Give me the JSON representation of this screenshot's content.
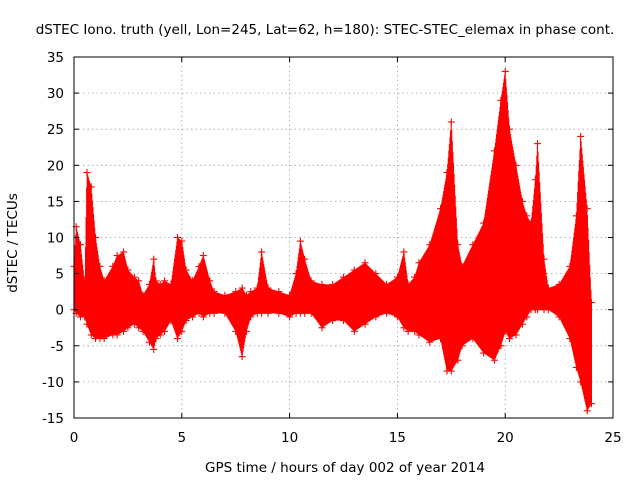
{
  "chart_data": {
    "type": "scatter",
    "title": "dSTEC Iono. truth (yell, Lon=245, Lat=62, h=180): STEC-STEC_elemax in phase cont.",
    "xlabel": "GPS time / hours of day 002 of year 2014",
    "ylabel": "dSTEC  / TECUs",
    "xlim": [
      0,
      25
    ],
    "ylim": [
      -15,
      35
    ],
    "xticks": [
      "0",
      "5",
      "10",
      "15",
      "20",
      "25"
    ],
    "xtick_values": [
      0,
      5,
      10,
      15,
      20,
      25
    ],
    "yticks": [
      "-15",
      "-10",
      "-5",
      "0",
      "5",
      "10",
      "15",
      "20",
      "25",
      "30",
      "35"
    ],
    "ytick_values": [
      -15,
      -10,
      -5,
      0,
      5,
      10,
      15,
      20,
      25,
      30,
      35
    ],
    "grid": true,
    "legend": "none",
    "marker": "+",
    "series": [
      {
        "color": "#ff0000",
        "envelope_x": [
          0.0,
          0.1,
          0.3,
          0.5,
          0.6,
          0.8,
          1.0,
          1.2,
          1.4,
          1.8,
          2.0,
          2.3,
          2.5,
          2.8,
          3.0,
          3.2,
          3.5,
          3.7,
          3.8,
          4.0,
          4.2,
          4.5,
          4.8,
          5.0,
          5.2,
          5.5,
          5.8,
          6.0,
          6.3,
          6.5,
          7.0,
          7.5,
          7.8,
          8.0,
          8.2,
          8.5,
          8.7,
          9.0,
          9.5,
          10.0,
          10.3,
          10.5,
          10.7,
          11.0,
          11.5,
          12.0,
          12.5,
          13.0,
          13.5,
          14.0,
          14.5,
          15.0,
          15.3,
          15.5,
          15.8,
          16.0,
          16.5,
          17.0,
          17.3,
          17.5,
          17.8,
          18.0,
          18.5,
          19.0,
          19.5,
          19.8,
          20.0,
          20.2,
          20.5,
          20.8,
          21.0,
          21.2,
          21.4,
          21.5,
          21.8,
          22.0,
          22.5,
          23.0,
          23.3,
          23.5,
          23.8,
          24.0
        ],
        "envelope_hi": [
          6.0,
          11.5,
          9.0,
          3.5,
          19.0,
          17.0,
          10.0,
          6.0,
          4.0,
          6.0,
          7.5,
          8.0,
          5.5,
          4.5,
          4.0,
          2.0,
          3.5,
          7.0,
          4.0,
          3.5,
          4.0,
          3.5,
          10.0,
          9.5,
          5.5,
          4.0,
          6.0,
          7.5,
          4.0,
          2.5,
          2.0,
          2.5,
          3.0,
          2.0,
          2.5,
          3.0,
          8.0,
          3.0,
          2.5,
          2.0,
          5.0,
          9.5,
          7.0,
          4.0,
          3.5,
          3.5,
          4.5,
          5.5,
          6.5,
          5.0,
          3.5,
          4.5,
          8.0,
          3.5,
          4.5,
          6.5,
          9.0,
          14.0,
          19.0,
          26.0,
          9.0,
          6.0,
          9.0,
          12.0,
          22.0,
          29.0,
          33.0,
          25.0,
          20.0,
          15.0,
          13.0,
          12.0,
          18.0,
          23.0,
          7.0,
          3.0,
          3.5,
          6.0,
          13.0,
          24.0,
          14.0,
          1.0
        ],
        "envelope_lo": [
          0.0,
          -0.5,
          -1.0,
          -1.0,
          -2.0,
          -3.5,
          -4.0,
          -4.0,
          -4.0,
          -3.5,
          -3.5,
          -3.0,
          -2.5,
          -2.0,
          -2.5,
          -3.0,
          -4.5,
          -5.5,
          -4.0,
          -3.5,
          -3.0,
          -1.5,
          -4.0,
          -3.0,
          -1.5,
          -1.0,
          -0.5,
          -1.0,
          -0.5,
          -0.5,
          -0.5,
          -3.0,
          -6.5,
          -3.0,
          -1.0,
          -0.5,
          -0.5,
          -0.5,
          -0.5,
          -1.0,
          -0.5,
          -0.5,
          -0.5,
          -0.5,
          -2.5,
          -1.5,
          -1.5,
          -3.0,
          -2.0,
          -1.0,
          -0.5,
          -1.0,
          -2.5,
          -3.0,
          -3.0,
          -3.5,
          -4.5,
          -4.0,
          -8.5,
          -8.5,
          -7.0,
          -5.0,
          -4.0,
          -6.0,
          -7.0,
          -5.0,
          -3.0,
          -4.0,
          -3.5,
          -2.0,
          -1.0,
          0.0,
          0.0,
          0.0,
          0.0,
          0.0,
          -1.0,
          -4.0,
          -8.0,
          -10.0,
          -14.0,
          -13.0
        ]
      }
    ]
  }
}
